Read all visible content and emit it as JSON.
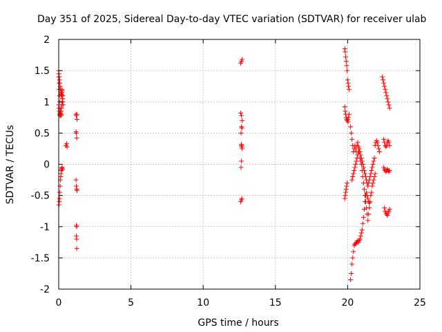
{
  "chart_data": {
    "type": "scatter",
    "title": "Day 351 of 2025, Sidereal Day-to-day VTEC variation (SDTVAR) for receiver ulab",
    "xlabel": "GPS time / hours",
    "ylabel": "SDTVAR / TECUs",
    "xlim": [
      0,
      25
    ],
    "ylim": [
      -2,
      2
    ],
    "xticks": [
      0,
      5,
      10,
      15,
      20,
      25
    ],
    "yticks": [
      -2,
      -1.5,
      -1,
      -0.5,
      0,
      0.5,
      1,
      1.5,
      2
    ],
    "xtick_labels": [
      "0",
      "5",
      "10",
      "15",
      "20",
      "25"
    ],
    "ytick_labels": [
      "-2",
      "-1.5",
      "-1",
      "-0.5",
      "0",
      "0.5",
      "1",
      "1.5",
      "2"
    ],
    "grid": true,
    "marker": "+",
    "colors": {
      "series": "#ff0000",
      "grid": "#a0a0a0",
      "axis": "#000000"
    },
    "series": [
      {
        "name": "SDTVAR",
        "x": [
          0.0,
          0.02,
          0.04,
          0.06,
          0.08,
          0.1,
          0.12,
          0.14,
          0.16,
          0.18,
          0.2,
          0.22,
          0.24,
          0.26,
          0.28,
          0.3,
          0.0,
          0.02,
          0.04,
          0.06,
          0.08,
          0.1,
          0.12,
          0.14,
          0.16,
          0.18,
          0.2,
          0.22,
          0.24,
          0.26,
          0.28,
          0.02,
          0.04,
          0.06,
          0.08,
          0.1,
          0.12,
          0.14,
          0.16,
          0.18,
          0.2,
          0.22,
          0.24,
          0.26,
          0.0,
          0.02,
          0.04,
          0.06,
          0.08,
          0.1,
          0.12,
          0.14,
          0.16,
          0.18,
          0.2,
          0.22,
          0.24,
          0.5,
          0.55,
          0.58,
          1.2,
          1.22,
          1.25,
          1.27,
          1.2,
          1.22,
          1.25,
          1.2,
          1.22,
          1.25,
          1.27,
          1.22,
          1.25,
          1.22,
          1.24,
          1.25,
          12.6,
          12.65,
          12.7,
          12.6,
          12.65,
          12.7,
          12.65,
          12.62,
          12.65,
          12.68,
          12.65,
          12.62,
          12.68,
          12.65,
          12.6,
          12.68,
          12.65,
          12.7,
          19.8,
          19.83,
          19.86,
          19.9,
          19.93,
          19.96,
          20.0,
          20.03,
          20.06,
          20.1,
          19.8,
          19.83,
          19.86,
          19.9,
          19.93,
          19.96,
          20.0,
          20.03,
          20.06,
          20.1,
          19.8,
          19.83,
          19.86,
          19.9,
          19.93,
          19.96,
          20.2,
          20.25,
          20.3,
          20.35,
          20.4,
          20.45,
          20.5,
          20.55,
          20.6,
          20.65,
          20.7,
          20.75,
          20.8,
          20.85,
          20.9,
          20.95,
          21.0,
          21.05,
          21.1,
          21.15,
          21.2,
          21.25,
          21.3,
          21.35,
          21.4,
          21.45,
          21.5,
          20.2,
          20.25,
          20.3,
          20.35,
          20.4,
          20.45,
          20.5,
          20.55,
          20.6,
          20.65,
          20.7,
          20.75,
          20.8,
          20.85,
          20.9,
          20.95,
          21.0,
          21.05,
          21.1,
          21.15,
          21.2,
          21.25,
          21.3,
          21.35,
          21.4,
          21.45,
          21.5,
          21.55,
          21.6,
          21.65,
          21.7,
          21.75,
          21.8,
          21.85,
          21.9,
          20.3,
          20.35,
          20.4,
          20.45,
          20.5,
          20.55,
          20.6,
          20.65,
          20.7,
          20.75,
          20.8,
          20.85,
          20.9,
          20.95,
          21.0,
          21.05,
          21.1,
          21.15,
          21.2,
          21.25,
          21.3,
          21.35,
          21.4,
          21.45,
          21.5,
          21.55,
          21.6,
          21.65,
          21.7,
          21.75,
          21.8,
          21.85,
          21.9,
          21.95,
          22.0,
          22.05,
          22.1,
          22.15,
          22.2,
          22.4,
          22.45,
          22.5,
          22.55,
          22.6,
          22.65,
          22.7,
          22.75,
          22.8,
          22.85,
          22.9,
          22.5,
          22.55,
          22.6,
          22.65,
          22.7,
          22.75,
          22.8,
          22.85,
          22.9,
          22.5,
          22.55,
          22.6,
          22.65,
          22.7,
          22.75,
          22.8,
          22.85,
          22.9,
          22.55,
          22.6,
          22.65,
          22.7,
          22.75,
          22.8,
          22.85,
          22.9
        ],
        "y": [
          1.5,
          1.45,
          1.4,
          1.35,
          1.3,
          1.25,
          1.2,
          1.15,
          1.12,
          1.1,
          1.12,
          1.15,
          1.1,
          1.05,
          1.0,
          0.95,
          0.95,
          0.9,
          0.85,
          0.8,
          0.78,
          0.8,
          0.82,
          0.8,
          0.78,
          0.85,
          0.9,
          0.95,
          1.0,
          1.05,
          1.1,
          -0.65,
          -0.6,
          -0.55,
          -0.45,
          -0.35,
          -0.25,
          -0.2,
          -0.15,
          -0.1,
          -0.08,
          -0.06,
          -0.05,
          -0.08,
          1.4,
          1.3,
          1.2,
          1.1,
          1.0,
          0.9,
          0.85,
          0.8,
          0.78,
          0.8,
          1.15,
          1.2,
          1.18,
          0.3,
          0.33,
          0.28,
          0.8,
          0.78,
          0.8,
          0.72,
          0.52,
          0.5,
          0.42,
          -0.25,
          -0.35,
          -0.4,
          -0.42,
          -0.98,
          -1.0,
          -1.15,
          -1.2,
          -1.35,
          1.62,
          1.65,
          1.68,
          0.82,
          0.78,
          0.7,
          0.6,
          0.5,
          0.32,
          0.28,
          0.05,
          -0.05,
          -0.55,
          -0.57,
          -0.6,
          0.58,
          0.3,
          0.25,
          1.85,
          1.8,
          1.72,
          1.65,
          1.58,
          1.5,
          1.35,
          1.3,
          1.25,
          1.2,
          0.92,
          0.85,
          0.8,
          0.75,
          0.72,
          0.7,
          0.72,
          0.68,
          0.75,
          0.8,
          -0.55,
          -0.5,
          -0.45,
          -0.4,
          -0.35,
          -0.3,
          -1.85,
          -1.75,
          -1.6,
          -1.5,
          -1.4,
          -1.3,
          -1.28,
          -1.27,
          -1.25,
          -1.25,
          -1.22,
          -1.25,
          -1.22,
          -1.2,
          -1.15,
          -1.1,
          -1.05,
          -0.95,
          -0.85,
          -0.72,
          -0.6,
          -0.5,
          -0.45,
          -0.5,
          -0.55,
          -0.6,
          -0.62,
          0.6,
          0.5,
          0.4,
          0.3,
          0.2,
          0.25,
          0.3,
          0.25,
          0.2,
          0.3,
          0.35,
          0.28,
          0.2,
          0.1,
          0.05,
          0.0,
          -0.1,
          -0.2,
          -0.3,
          -0.4,
          -0.5,
          -0.6,
          -0.7,
          -0.8,
          -0.9,
          -0.8,
          -0.7,
          -0.6,
          -0.5,
          -0.45,
          -0.35,
          -0.3,
          -0.25,
          -0.2,
          -0.15,
          -0.25,
          -0.2,
          -0.15,
          -0.1,
          -0.05,
          0.0,
          0.05,
          0.1,
          0.15,
          0.2,
          0.25,
          0.2,
          0.15,
          0.1,
          0.05,
          0.0,
          -0.05,
          -0.1,
          -0.15,
          -0.2,
          -0.25,
          -0.3,
          -0.35,
          -0.3,
          -0.25,
          -0.2,
          -0.15,
          -0.1,
          -0.05,
          0.0,
          0.05,
          0.1,
          0.3,
          0.35,
          0.38,
          0.35,
          0.3,
          0.25,
          0.2,
          1.4,
          1.35,
          1.3,
          1.25,
          1.2,
          1.15,
          1.1,
          1.05,
          1.0,
          0.95,
          0.9,
          0.4,
          0.35,
          0.3,
          0.28,
          0.3,
          0.35,
          0.38,
          0.35,
          0.3,
          -0.05,
          -0.08,
          -0.1,
          -0.12,
          -0.1,
          -0.08,
          -0.1,
          -0.12,
          -0.1,
          -0.7,
          -0.75,
          -0.78,
          -0.8,
          -0.82,
          -0.78,
          -0.75,
          -0.72
        ]
      }
    ]
  }
}
